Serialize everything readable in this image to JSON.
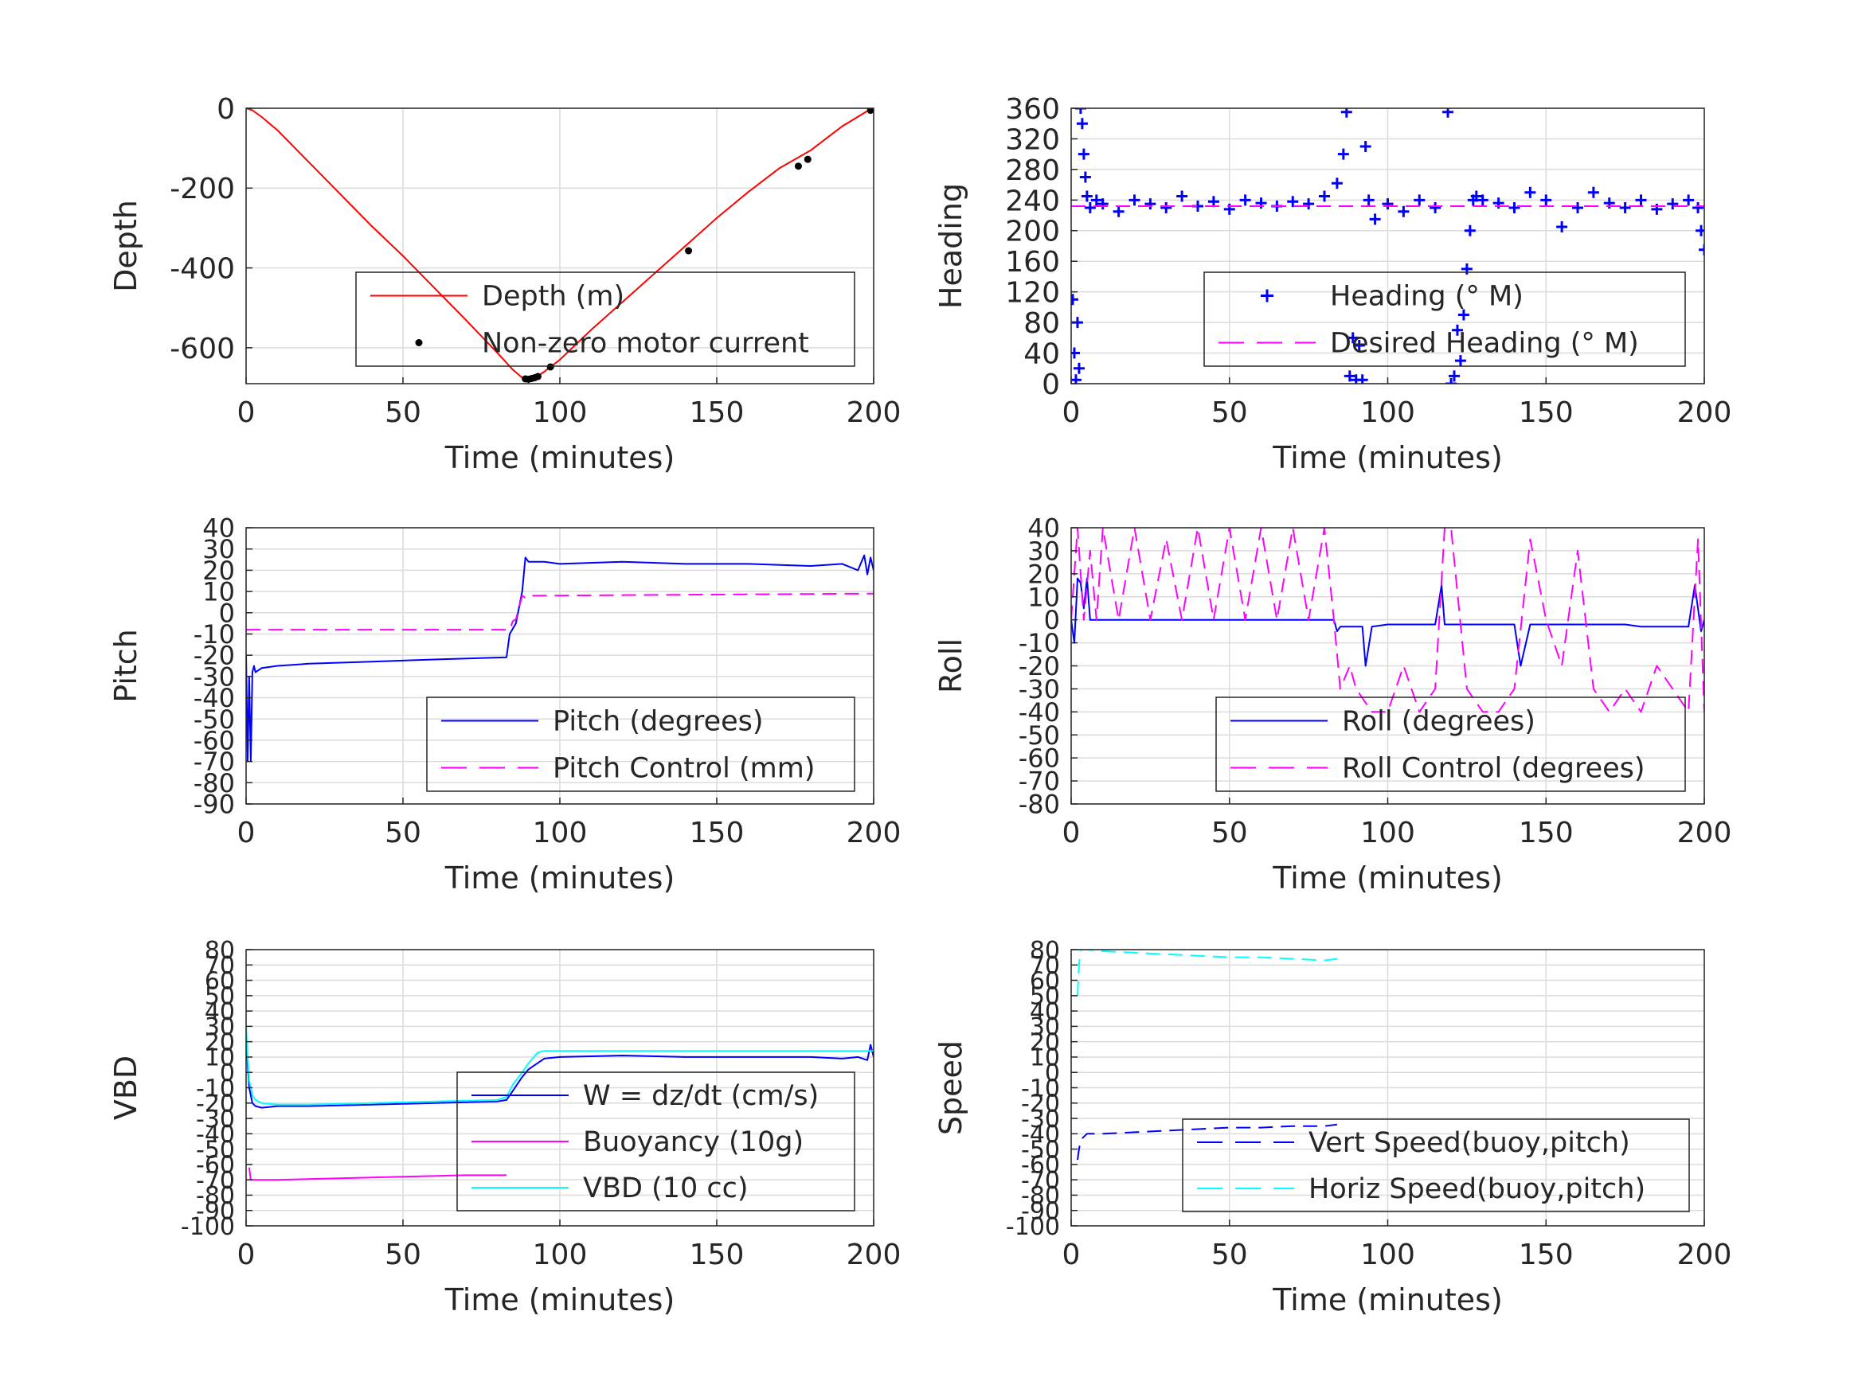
{
  "figure": {
    "background": "#ffffff"
  },
  "colors": {
    "depth": "#ff0000",
    "motor": "#000000",
    "blue": "#0000ff",
    "magenta": "#ff00ff",
    "cyan": "#00ffff",
    "grid": "#dcdcdc",
    "axis": "#262626"
  },
  "chart_data": [
    {
      "id": "depth",
      "type": "line",
      "xlabel": "Time (minutes)",
      "ylabel": "Depth",
      "xlim": [
        0,
        200
      ],
      "ylim": [
        -690,
        0
      ],
      "xticks": [
        0,
        50,
        100,
        150,
        200
      ],
      "yticks": [
        0,
        -200,
        -400,
        -600
      ],
      "xtick_labels": [
        "0",
        "50",
        "100",
        "150",
        "200"
      ],
      "ytick_labels": [
        "0",
        "-200",
        "-400",
        "-600"
      ],
      "grid": true,
      "legend_position": "bottom-right",
      "series": [
        {
          "name": "Depth (m)",
          "style": "line",
          "color": "#ff0000",
          "x": [
            0,
            2,
            5,
            10,
            20,
            30,
            40,
            50,
            60,
            70,
            80,
            85,
            88,
            89,
            90,
            92,
            95,
            100,
            110,
            120,
            130,
            140,
            150,
            160,
            170,
            180,
            190,
            199,
            200
          ],
          "y": [
            0,
            -5,
            -22,
            -55,
            -135,
            -215,
            -295,
            -370,
            -450,
            -530,
            -612,
            -655,
            -675,
            -678,
            -680,
            -676,
            -660,
            -630,
            -555,
            -485,
            -415,
            -345,
            -275,
            -210,
            -150,
            -105,
            -45,
            -2,
            0
          ]
        },
        {
          "name": "Non-zero motor current",
          "style": "points",
          "color": "#000000",
          "x": [
            89,
            90,
            91,
            92,
            93,
            97,
            141,
            176,
            179,
            199,
            200
          ],
          "y": [
            -678,
            -679,
            -677,
            -675,
            -672,
            -648,
            -357,
            -145,
            -128,
            -5,
            -2
          ]
        }
      ]
    },
    {
      "id": "heading",
      "type": "scatter",
      "xlabel": "Time (minutes)",
      "ylabel": "Heading",
      "xlim": [
        0,
        200
      ],
      "ylim": [
        0,
        360
      ],
      "xticks": [
        0,
        50,
        100,
        150,
        200
      ],
      "yticks": [
        0,
        40,
        80,
        120,
        160,
        200,
        240,
        280,
        320,
        360
      ],
      "xtick_labels": [
        "0",
        "50",
        "100",
        "150",
        "200"
      ],
      "ytick_labels": [
        "0",
        "40",
        "80",
        "120",
        "160",
        "200",
        "240",
        "280",
        "320",
        "360"
      ],
      "grid": true,
      "legend_position": "bottom-right",
      "series": [
        {
          "name": "Heading (° M)",
          "style": "plus",
          "color": "#0000ff",
          "x": [
            0.5,
            1,
            1.5,
            2,
            2.5,
            3,
            3.5,
            4,
            4.5,
            5,
            6,
            8,
            10,
            15,
            20,
            25,
            30,
            35,
            40,
            45,
            50,
            55,
            60,
            65,
            70,
            75,
            80,
            84,
            86,
            87,
            88,
            89,
            90,
            91,
            92,
            93,
            94,
            96,
            100,
            105,
            110,
            115,
            119,
            120,
            121,
            122,
            123,
            124,
            125,
            126,
            127,
            128,
            130,
            135,
            140,
            145,
            150,
            155,
            160,
            165,
            170,
            175,
            180,
            185,
            190,
            195,
            198,
            199,
            200
          ],
          "y": [
            110,
            40,
            5,
            80,
            20,
            360,
            340,
            300,
            270,
            245,
            230,
            240,
            235,
            225,
            240,
            235,
            230,
            245,
            232,
            238,
            228,
            240,
            236,
            232,
            238,
            235,
            245,
            262,
            300,
            355,
            10,
            60,
            5,
            50,
            5,
            310,
            240,
            215,
            235,
            225,
            240,
            230,
            355,
            0,
            10,
            70,
            30,
            90,
            150,
            200,
            240,
            245,
            240,
            236,
            230,
            250,
            240,
            205,
            230,
            250,
            236,
            230,
            240,
            228,
            235,
            240,
            230,
            200,
            175
          ]
        },
        {
          "name": "Desired Heading (° M)",
          "style": "dashed",
          "color": "#ff00ff",
          "x": [
            0,
            200
          ],
          "y": [
            232,
            232
          ]
        }
      ]
    },
    {
      "id": "pitch",
      "type": "line",
      "xlabel": "Time (minutes)",
      "ylabel": "Pitch",
      "xlim": [
        0,
        200
      ],
      "ylim": [
        -90,
        40
      ],
      "xticks": [
        0,
        50,
        100,
        150,
        200
      ],
      "yticks": [
        -90,
        -80,
        -70,
        -60,
        -50,
        -40,
        -30,
        -20,
        -10,
        0,
        10,
        20,
        30,
        40
      ],
      "xtick_labels": [
        "0",
        "50",
        "100",
        "150",
        "200"
      ],
      "ytick_labels": [
        "-90",
        "-80",
        "-70",
        "-60",
        "-50",
        "-40",
        "-30",
        "-20",
        "-10",
        "0",
        "10",
        "20",
        "30",
        "40"
      ],
      "grid": true,
      "legend_position": "bottom-right",
      "series": [
        {
          "name": "Pitch (degrees)",
          "style": "line",
          "color": "#0000ff",
          "x": [
            0,
            0.5,
            1,
            1.5,
            2,
            2.5,
            3,
            5,
            10,
            20,
            40,
            60,
            83,
            84,
            86,
            88,
            89,
            90,
            95,
            100,
            120,
            140,
            160,
            180,
            190,
            195,
            197,
            198,
            199,
            200
          ],
          "y": [
            -20,
            -70,
            -30,
            -70,
            -28,
            -25,
            -28,
            -26,
            -25,
            -24,
            -23,
            -22,
            -21,
            -10,
            -5,
            10,
            26,
            24,
            24,
            23,
            24,
            23,
            23,
            22,
            23,
            20,
            27,
            18,
            26,
            20
          ]
        },
        {
          "name": "Pitch Control (mm)",
          "style": "dashed",
          "color": "#ff00ff",
          "x": [
            0,
            1,
            84,
            85,
            86,
            88,
            89,
            90,
            200
          ],
          "y": [
            -8,
            -8,
            -8,
            -4,
            -3,
            8,
            7,
            8,
            9
          ]
        }
      ]
    },
    {
      "id": "roll",
      "type": "line",
      "xlabel": "Time (minutes)",
      "ylabel": "Roll",
      "xlim": [
        0,
        200
      ],
      "ylim": [
        -80,
        40
      ],
      "xticks": [
        0,
        50,
        100,
        150,
        200
      ],
      "yticks": [
        -80,
        -70,
        -60,
        -50,
        -40,
        -30,
        -20,
        -10,
        0,
        10,
        20,
        30,
        40
      ],
      "xtick_labels": [
        "0",
        "50",
        "100",
        "150",
        "200"
      ],
      "ytick_labels": [
        "-80",
        "-70",
        "-60",
        "-50",
        "-40",
        "-30",
        "-20",
        "-10",
        "0",
        "10",
        "20",
        "30",
        "40"
      ],
      "grid": true,
      "legend_position": "bottom-right",
      "series": [
        {
          "name": "Roll (degrees)",
          "style": "line",
          "color": "#0000ff",
          "x": [
            0,
            1,
            2,
            3,
            4,
            5,
            6,
            8,
            10,
            15,
            20,
            25,
            30,
            35,
            40,
            45,
            50,
            55,
            60,
            65,
            70,
            75,
            80,
            83,
            84,
            85,
            88,
            90,
            92,
            93,
            95,
            100,
            105,
            110,
            115,
            117,
            118,
            120,
            122,
            125,
            130,
            135,
            140,
            142,
            145,
            150,
            155,
            158,
            160,
            165,
            170,
            175,
            180,
            185,
            190,
            195,
            197,
            199,
            200
          ],
          "y": [
            0,
            -10,
            18,
            16,
            5,
            18,
            0,
            0,
            0,
            0,
            0,
            0,
            0,
            0,
            0,
            0,
            0,
            0,
            0,
            0,
            0,
            0,
            0,
            0,
            -5,
            -3,
            -3,
            -3,
            -3,
            -20,
            -3,
            -2,
            -2,
            -2,
            -2,
            15,
            -2,
            -2,
            -2,
            -2,
            -2,
            -2,
            -2,
            -20,
            -2,
            -2,
            -2,
            -2,
            -2,
            -2,
            -2,
            -2,
            -3,
            -3,
            -3,
            -3,
            15,
            -5,
            0
          ]
        },
        {
          "name": "Roll Control (degrees)",
          "style": "dashed",
          "color": "#ff00ff",
          "x": [
            0,
            2,
            4,
            6,
            8,
            10,
            15,
            20,
            25,
            30,
            35,
            40,
            45,
            50,
            55,
            60,
            65,
            70,
            75,
            80,
            83,
            85,
            88,
            90,
            95,
            100,
            105,
            110,
            115,
            118,
            120,
            125,
            130,
            135,
            140,
            145,
            150,
            155,
            160,
            165,
            170,
            175,
            180,
            185,
            190,
            195,
            198,
            200
          ],
          "y": [
            0,
            40,
            0,
            30,
            0,
            40,
            0,
            40,
            0,
            35,
            0,
            40,
            0,
            40,
            0,
            40,
            0,
            40,
            0,
            40,
            0,
            -30,
            -20,
            -30,
            -40,
            -40,
            -20,
            -40,
            -30,
            40,
            40,
            -30,
            -40,
            -40,
            -30,
            35,
            0,
            -20,
            30,
            -30,
            -40,
            -30,
            -40,
            -20,
            -30,
            -40,
            35,
            -40
          ]
        }
      ]
    },
    {
      "id": "vbd",
      "type": "line",
      "xlabel": "Time (minutes)",
      "ylabel": "VBD",
      "xlim": [
        0,
        200
      ],
      "ylim": [
        -100,
        80
      ],
      "xticks": [
        0,
        50,
        100,
        150,
        200
      ],
      "yticks": [
        -100,
        -90,
        -80,
        -70,
        -60,
        -50,
        -40,
        -30,
        -20,
        -10,
        0,
        10,
        20,
        30,
        40,
        50,
        60,
        70,
        80
      ],
      "xtick_labels": [
        "0",
        "50",
        "100",
        "150",
        "200"
      ],
      "ytick_labels": [
        "-100",
        "-90",
        "-80",
        "-70",
        "-60",
        "-50",
        "-40",
        "-30",
        "-20",
        "-10",
        "0",
        "10",
        "20",
        "30",
        "40",
        "50",
        "60",
        "70",
        "80"
      ],
      "grid": true,
      "legend_position": "bottom-right",
      "series": [
        {
          "name": "W = dz/dt (cm/s)",
          "style": "line",
          "color": "#0000ff",
          "x": [
            0,
            0.5,
            1,
            2,
            3,
            5,
            10,
            20,
            40,
            60,
            80,
            83,
            85,
            88,
            90,
            95,
            100,
            120,
            140,
            160,
            175,
            180,
            190,
            195,
            198,
            199,
            200
          ],
          "y": [
            25,
            5,
            -10,
            -20,
            -22,
            -23,
            -22,
            -22,
            -21,
            -20,
            -19,
            -18,
            -12,
            -3,
            2,
            9,
            10,
            11,
            10,
            10,
            10,
            10,
            9,
            10,
            8,
            18,
            10
          ]
        },
        {
          "name": "Buoyancy (10g)",
          "style": "line",
          "color": "#ff00ff",
          "x": [
            1,
            1.5,
            2,
            10,
            30,
            50,
            70,
            83
          ],
          "y": [
            -62,
            -70,
            -70,
            -70,
            -69,
            -68,
            -67,
            -67
          ]
        },
        {
          "name": "VBD (10 cc)",
          "style": "line",
          "color": "#00ffff",
          "x": [
            0,
            0.5,
            1,
            2,
            3,
            5,
            10,
            20,
            40,
            60,
            80,
            83,
            85,
            88,
            90,
            93,
            95,
            100,
            140,
            180,
            199,
            200
          ],
          "y": [
            30,
            10,
            -5,
            -15,
            -18,
            -20,
            -21,
            -21,
            -20,
            -19,
            -18,
            -16,
            -8,
            0,
            6,
            13,
            14,
            14,
            14,
            14,
            14,
            14
          ]
        }
      ]
    },
    {
      "id": "speed",
      "type": "line",
      "xlabel": "Time (minutes)",
      "ylabel": "Speed",
      "xlim": [
        0,
        200
      ],
      "ylim": [
        -100,
        80
      ],
      "xticks": [
        0,
        50,
        100,
        150,
        200
      ],
      "yticks": [
        -100,
        -90,
        -80,
        -70,
        -60,
        -50,
        -40,
        -30,
        -20,
        -10,
        0,
        10,
        20,
        30,
        40,
        50,
        60,
        70,
        80
      ],
      "xtick_labels": [
        "0",
        "50",
        "100",
        "150",
        "200"
      ],
      "ytick_labels": [
        "-100",
        "-90",
        "-80",
        "-70",
        "-60",
        "-50",
        "-40",
        "-30",
        "-20",
        "-10",
        "0",
        "10",
        "20",
        "30",
        "40",
        "50",
        "60",
        "70",
        "80"
      ],
      "grid": true,
      "legend_position": "bottom-right",
      "series": [
        {
          "name": "Vert Speed(buoy,pitch)",
          "style": "dashed",
          "color": "#0000ff",
          "x": [
            2,
            2.5,
            3,
            5,
            10,
            20,
            30,
            40,
            50,
            60,
            70,
            80,
            84
          ],
          "y": [
            -57,
            -50,
            -44,
            -40,
            -40,
            -39,
            -38,
            -37,
            -36,
            -36,
            -35,
            -35,
            -34
          ]
        },
        {
          "name": "Horiz Speed(buoy,pitch)",
          "style": "dashed",
          "color": "#00ffff",
          "x": [
            2,
            2.5,
            3,
            5,
            10,
            20,
            30,
            40,
            50,
            60,
            70,
            80,
            84
          ],
          "y": [
            50,
            70,
            80,
            80,
            79,
            78,
            77,
            76,
            75,
            75,
            74,
            73,
            74
          ]
        }
      ]
    }
  ]
}
